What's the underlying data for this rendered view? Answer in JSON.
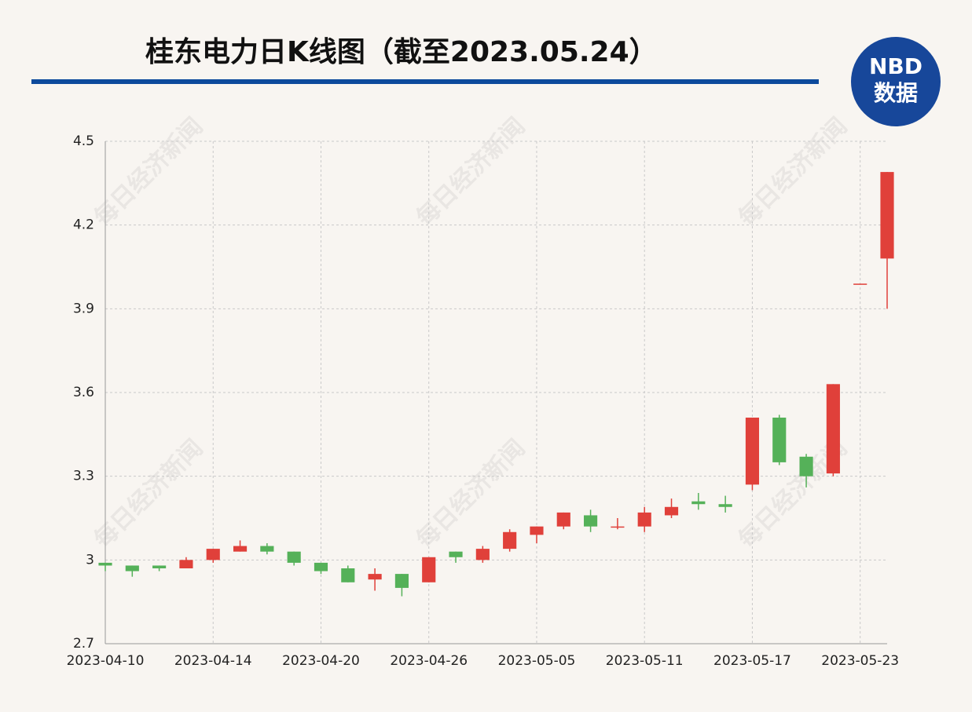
{
  "chart_data": {
    "type": "candlestick",
    "title": "桂东电力日K线图（截至2023.05.24）",
    "logo": {
      "top": "NBD",
      "bottom": "数据"
    },
    "watermark": "每日经济新闻",
    "categories": [
      "2023-04-10",
      null,
      null,
      null,
      "2023-04-14",
      null,
      null,
      null,
      "2023-04-20",
      null,
      null,
      null,
      "2023-04-26",
      null,
      null,
      null,
      "2023-05-05",
      null,
      null,
      null,
      "2023-05-11",
      null,
      null,
      null,
      "2023-05-17",
      null,
      null,
      null,
      "2023-05-23",
      null
    ],
    "open": [
      2.99,
      2.98,
      2.98,
      2.97,
      3.0,
      3.03,
      3.05,
      3.03,
      2.99,
      2.97,
      2.93,
      2.95,
      2.92,
      3.03,
      3.0,
      3.04,
      3.09,
      3.12,
      3.16,
      3.12,
      3.12,
      3.16,
      3.21,
      3.2,
      3.27,
      3.51,
      3.37,
      3.31,
      3.99,
      4.08
    ],
    "high": [
      2.99,
      2.98,
      2.98,
      3.01,
      3.04,
      3.07,
      3.06,
      3.03,
      2.99,
      2.98,
      2.97,
      2.95,
      3.01,
      3.03,
      3.05,
      3.11,
      3.12,
      3.17,
      3.18,
      3.15,
      3.19,
      3.22,
      3.24,
      3.23,
      3.51,
      3.52,
      3.38,
      3.63,
      3.99,
      4.39
    ],
    "low": [
      2.96,
      2.94,
      2.96,
      2.97,
      2.99,
      3.03,
      3.02,
      2.98,
      2.95,
      2.92,
      2.89,
      2.87,
      2.92,
      2.99,
      2.99,
      3.03,
      3.06,
      3.11,
      3.1,
      3.11,
      3.1,
      3.15,
      3.18,
      3.17,
      3.25,
      3.34,
      3.26,
      3.3,
      3.99,
      3.9
    ],
    "close": [
      2.98,
      2.96,
      2.97,
      3.0,
      3.04,
      3.05,
      3.03,
      2.99,
      2.96,
      2.92,
      2.95,
      2.9,
      3.01,
      3.01,
      3.04,
      3.1,
      3.12,
      3.17,
      3.12,
      3.12,
      3.17,
      3.19,
      3.2,
      3.19,
      3.51,
      3.35,
      3.3,
      3.63,
      3.99,
      4.39
    ],
    "up_color": "#e0403a",
    "down_color": "#55b159",
    "ylim": [
      2.7,
      4.5
    ],
    "yticks": [
      2.7,
      3,
      3.3,
      3.6,
      3.9,
      4.2,
      4.5
    ],
    "grid": true
  }
}
